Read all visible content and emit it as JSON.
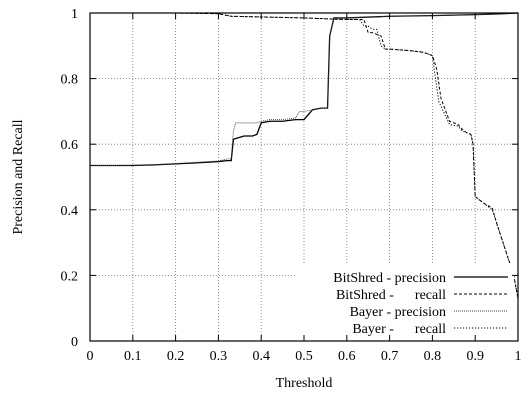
{
  "chart_data": {
    "type": "line",
    "title": "",
    "xlabel": "Threshold",
    "ylabel": "Precision and Recall",
    "xlim": [
      0,
      1
    ],
    "ylim": [
      0,
      1
    ],
    "x_ticks": [
      "0",
      "0.1",
      "0.2",
      "0.3",
      "0.4",
      "0.5",
      "0.6",
      "0.7",
      "0.8",
      "0.9",
      "1"
    ],
    "y_ticks": [
      "0",
      "0.2",
      "0.4",
      "0.6",
      "0.8",
      "1"
    ],
    "grid": true,
    "legend_position": "bottom-right",
    "series": [
      {
        "name": "BitShred - precision",
        "style": "solid",
        "x": [
          0,
          0.05,
          0.1,
          0.15,
          0.2,
          0.25,
          0.3,
          0.32,
          0.33,
          0.335,
          0.36,
          0.37,
          0.38,
          0.39,
          0.4,
          0.42,
          0.45,
          0.48,
          0.5,
          0.52,
          0.54,
          0.555,
          0.56,
          0.57,
          0.6,
          0.7,
          0.8,
          0.9,
          0.95,
          1
        ],
        "y": [
          0.535,
          0.535,
          0.535,
          0.537,
          0.54,
          0.543,
          0.547,
          0.55,
          0.55,
          0.615,
          0.625,
          0.625,
          0.625,
          0.63,
          0.665,
          0.67,
          0.67,
          0.675,
          0.675,
          0.705,
          0.71,
          0.71,
          0.93,
          0.985,
          0.985,
          0.99,
          0.992,
          0.995,
          0.997,
          1
        ]
      },
      {
        "name": "BitShred - recall",
        "style": "dashed",
        "x": [
          0,
          0.2,
          0.3,
          0.33,
          0.4,
          0.5,
          0.6,
          0.64,
          0.65,
          0.66,
          0.68,
          0.69,
          0.7,
          0.75,
          0.78,
          0.8,
          0.81,
          0.82,
          0.84,
          0.86,
          0.87,
          0.88,
          0.89,
          0.895,
          0.9,
          0.92,
          0.94,
          0.95,
          0.96,
          0.97,
          0.98,
          0.99,
          1
        ],
        "y": [
          1,
          1,
          0.998,
          0.99,
          0.988,
          0.985,
          0.98,
          0.98,
          0.94,
          0.94,
          0.93,
          0.89,
          0.89,
          0.885,
          0.88,
          0.87,
          0.83,
          0.74,
          0.67,
          0.66,
          0.645,
          0.635,
          0.63,
          0.6,
          0.44,
          0.42,
          0.405,
          0.36,
          0.32,
          0.28,
          0.24,
          0.2,
          0.13
        ]
      },
      {
        "name": "Bayer - precision",
        "style": "fine-dotted",
        "x": [
          0,
          0.05,
          0.1,
          0.15,
          0.2,
          0.25,
          0.3,
          0.32,
          0.33,
          0.335,
          0.34,
          0.36,
          0.37,
          0.38,
          0.39,
          0.4,
          0.42,
          0.45,
          0.48,
          0.49,
          0.5,
          0.52,
          0.54,
          0.555,
          0.56,
          0.57,
          0.6,
          0.7,
          0.8,
          0.9,
          0.95,
          1
        ],
        "y": [
          0.535,
          0.535,
          0.536,
          0.538,
          0.541,
          0.545,
          0.549,
          0.555,
          0.555,
          0.64,
          0.665,
          0.665,
          0.665,
          0.665,
          0.665,
          0.67,
          0.675,
          0.675,
          0.68,
          0.7,
          0.7,
          0.705,
          0.71,
          0.71,
          0.93,
          0.985,
          0.985,
          0.99,
          0.992,
          0.995,
          0.997,
          1
        ]
      },
      {
        "name": "Bayer - recall",
        "style": "dotted",
        "x": [
          0,
          0.2,
          0.3,
          0.33,
          0.4,
          0.5,
          0.6,
          0.63,
          0.64,
          0.65,
          0.66,
          0.67,
          0.68,
          0.69,
          0.7,
          0.75,
          0.78,
          0.8,
          0.805,
          0.815,
          0.84,
          0.86,
          0.87,
          0.88,
          0.89,
          0.895,
          0.9,
          0.92,
          0.94,
          0.95,
          0.96,
          0.97,
          0.98,
          0.99,
          1
        ],
        "y": [
          1,
          1,
          0.998,
          0.99,
          0.988,
          0.985,
          0.98,
          0.98,
          0.96,
          0.96,
          0.95,
          0.95,
          0.9,
          0.89,
          0.89,
          0.885,
          0.88,
          0.87,
          0.82,
          0.73,
          0.66,
          0.655,
          0.64,
          0.635,
          0.63,
          0.6,
          0.44,
          0.42,
          0.4,
          0.36,
          0.32,
          0.28,
          0.24,
          0.2,
          0.13
        ]
      }
    ],
    "legend": [
      {
        "label": "BitShred - precision",
        "style": "solid"
      },
      {
        "label": "BitShred -      recall",
        "style": "dashed"
      },
      {
        "label": "Bayer - precision",
        "style": "fine-dotted"
      },
      {
        "label": "Bayer -      recall",
        "style": "dotted"
      }
    ]
  }
}
